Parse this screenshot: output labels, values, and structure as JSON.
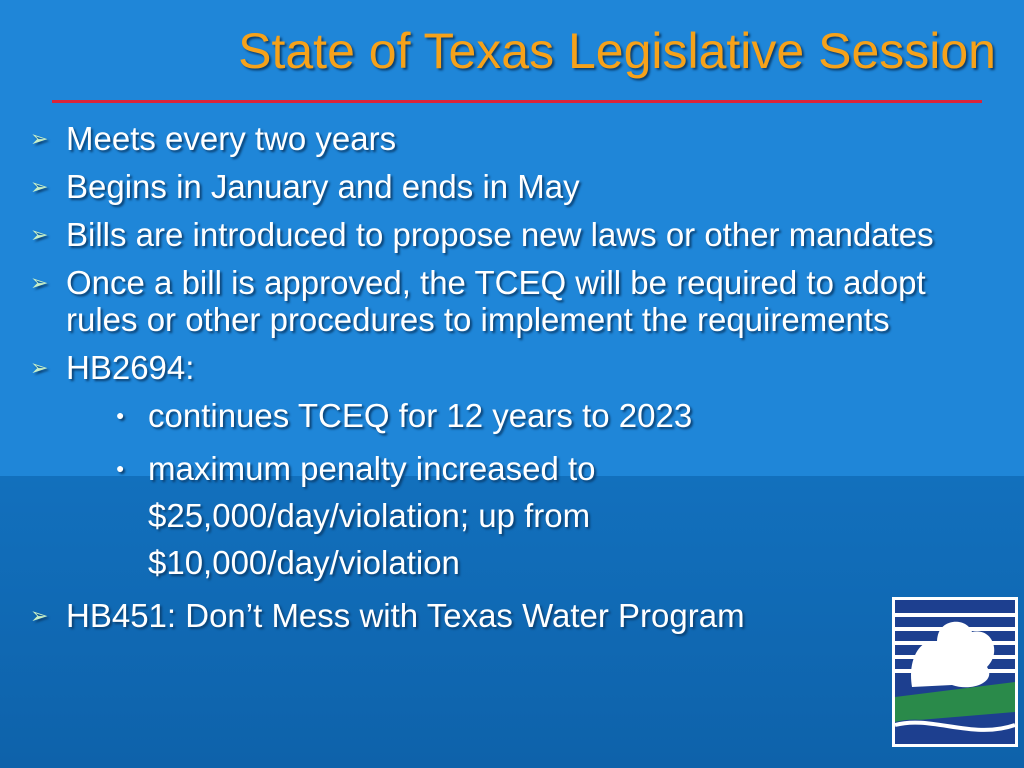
{
  "title": "State of Texas Legislative Session",
  "bullets": [
    {
      "text": "Meets every two years"
    },
    {
      "text": "Begins in January and ends in May"
    },
    {
      "text": "Bills are introduced to propose new laws or other mandates"
    },
    {
      "text": "Once a bill is approved, the TCEQ will be required to adopt rules or other procedures to implement the requirements"
    },
    {
      "text": "HB2694:",
      "subbullets": [
        "continues TCEQ for 12 years to 2023",
        "maximum penalty increased to $25,000/day/violation; up from $10,000/day/violation"
      ]
    },
    {
      "text": "HB451: Don’t Mess with Texas Water Program"
    }
  ]
}
